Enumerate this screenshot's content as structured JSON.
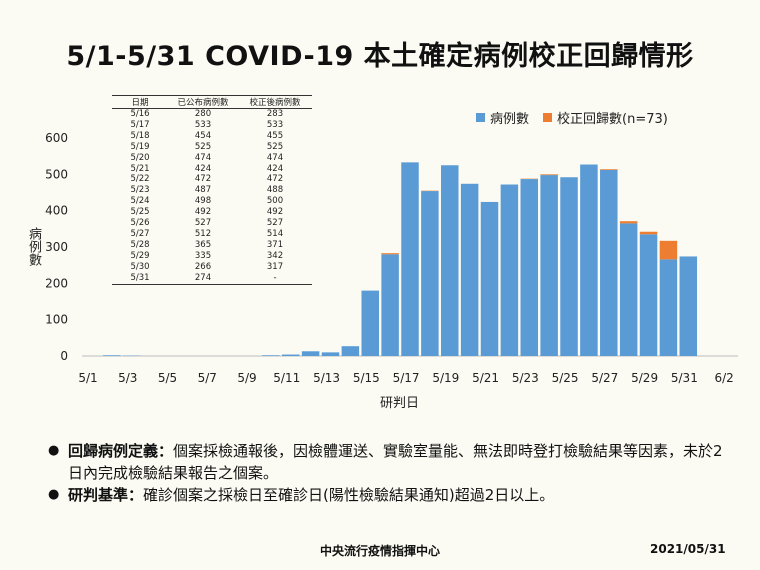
{
  "title": "5/1-5/31 COVID-19 本土確定病例校正回歸情形",
  "legend": {
    "cases_label": "病例數",
    "corrected_label": "校正回歸數(n=73)"
  },
  "colors": {
    "cases": "#5b9bd5",
    "corrected": "#ed7d31"
  },
  "table": {
    "headers": [
      "日期",
      "已公布病例數",
      "校正後病例數"
    ],
    "rows": [
      [
        "5/16",
        "280",
        "283"
      ],
      [
        "5/17",
        "533",
        "533"
      ],
      [
        "5/18",
        "454",
        "455"
      ],
      [
        "5/19",
        "525",
        "525"
      ],
      [
        "5/20",
        "474",
        "474"
      ],
      [
        "5/21",
        "424",
        "424"
      ],
      [
        "5/22",
        "472",
        "472"
      ],
      [
        "5/23",
        "487",
        "488"
      ],
      [
        "5/24",
        "498",
        "500"
      ],
      [
        "5/25",
        "492",
        "492"
      ],
      [
        "5/26",
        "527",
        "527"
      ],
      [
        "5/27",
        "512",
        "514"
      ],
      [
        "5/28",
        "365",
        "371"
      ],
      [
        "5/29",
        "335",
        "342"
      ],
      [
        "5/30",
        "266",
        "317"
      ],
      [
        "5/31",
        "274",
        "-"
      ]
    ]
  },
  "notes": [
    {
      "label": "回歸病例定義：",
      "text": "個案採檢通報後，因檢體運送、實驗室量能、無法即時登打檢驗結果等因素，未於2日內完成檢驗結果報告之個案。"
    },
    {
      "label": "研判基準：",
      "text": "確診個案之採檢日至確診日(陽性檢驗結果通知)超過2日以上。"
    }
  ],
  "footer": {
    "center": "中央流行疫情指揮中心",
    "date": "2021/05/31"
  },
  "chart_data": {
    "type": "bar",
    "stacked": true,
    "xlabel": "研判日",
    "ylabel": "病例數",
    "ylim": [
      0,
      600
    ],
    "yticks": [
      0,
      100,
      200,
      300,
      400,
      500,
      600
    ],
    "categories": [
      "5/1",
      "5/2",
      "5/3",
      "5/4",
      "5/5",
      "5/6",
      "5/7",
      "5/8",
      "5/9",
      "5/10",
      "5/11",
      "5/12",
      "5/13",
      "5/14",
      "5/15",
      "5/16",
      "5/17",
      "5/18",
      "5/19",
      "5/20",
      "5/21",
      "5/22",
      "5/23",
      "5/24",
      "5/25",
      "5/26",
      "5/27",
      "5/28",
      "5/29",
      "5/30",
      "5/31",
      "6/1",
      "6/2"
    ],
    "xtick_labels": [
      "5/1",
      "5/3",
      "5/5",
      "5/7",
      "5/9",
      "5/11",
      "5/13",
      "5/15",
      "5/17",
      "5/19",
      "5/21",
      "5/23",
      "5/25",
      "5/27",
      "5/29",
      "5/31",
      "6/2"
    ],
    "series": [
      {
        "name": "病例數",
        "values": [
          0,
          2,
          1,
          0,
          0,
          0,
          0,
          0,
          0,
          2,
          4,
          13,
          10,
          27,
          180,
          280,
          533,
          454,
          525,
          474,
          424,
          472,
          487,
          498,
          492,
          527,
          512,
          365,
          335,
          266,
          274,
          0,
          0
        ]
      },
      {
        "name": "校正回歸數(n=73)",
        "values": [
          0,
          0,
          0,
          0,
          0,
          0,
          0,
          0,
          0,
          0,
          0,
          0,
          0,
          0,
          0,
          3,
          0,
          1,
          0,
          0,
          0,
          0,
          1,
          2,
          0,
          0,
          2,
          6,
          7,
          51,
          0,
          0,
          0
        ]
      }
    ]
  }
}
